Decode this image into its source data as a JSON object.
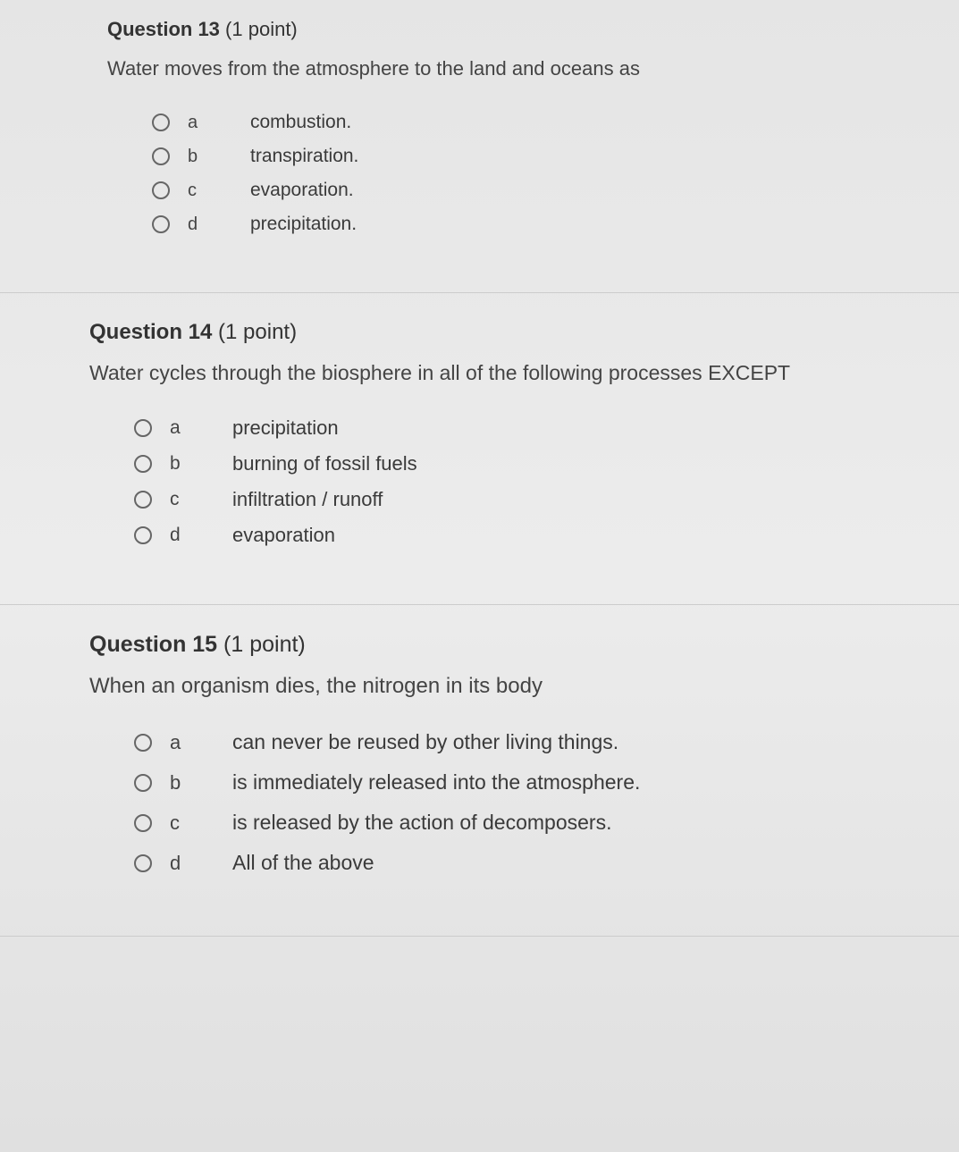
{
  "questions": [
    {
      "number": "Question 13",
      "points": "(1 point)",
      "text": "Water moves from the atmosphere to the land and oceans as",
      "options": [
        {
          "letter": "a",
          "text": "combustion."
        },
        {
          "letter": "b",
          "text": "transpiration."
        },
        {
          "letter": "c",
          "text": "evaporation."
        },
        {
          "letter": "d",
          "text": "precipitation."
        }
      ]
    },
    {
      "number": "Question 14",
      "points": "(1 point)",
      "text": "Water cycles through the biosphere in all of the following processes EXCEPT",
      "options": [
        {
          "letter": "a",
          "text": "precipitation"
        },
        {
          "letter": "b",
          "text": "burning of fossil fuels"
        },
        {
          "letter": "c",
          "text": "infiltration / runoff"
        },
        {
          "letter": "d",
          "text": "evaporation"
        }
      ]
    },
    {
      "number": "Question 15",
      "points": "(1 point)",
      "text": "When an organism dies, the nitrogen in its body",
      "options": [
        {
          "letter": "a",
          "text": "can never be reused by other living things."
        },
        {
          "letter": "b",
          "text": "is immediately released into the atmosphere."
        },
        {
          "letter": "c",
          "text": "is released by the action of decomposers."
        },
        {
          "letter": "d",
          "text": "All of the above"
        }
      ]
    }
  ],
  "colors": {
    "background": "#e8e8e8",
    "text": "#3a3a3a",
    "divider": "#cccccc",
    "radio_border": "#666666"
  },
  "typography": {
    "font_family": "Arial, Helvetica, sans-serif",
    "header_fontsize_pt": 17,
    "body_fontsize_pt": 16
  }
}
